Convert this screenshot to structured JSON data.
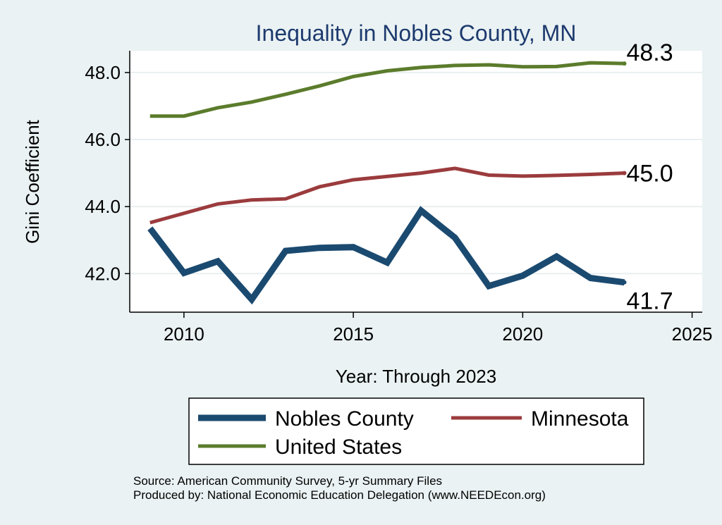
{
  "chart_data": {
    "type": "line",
    "title": "Inequality in Nobles County, MN",
    "xlabel": "Year: Through 2023",
    "ylabel": "Gini Coefficient",
    "xlim": [
      2008.4,
      2025.3
    ],
    "ylim": [
      40.85,
      48.65
    ],
    "x_ticks": [
      2010,
      2015,
      2020,
      2025
    ],
    "x_tick_labels": [
      "2010",
      "2015",
      "2020",
      "2025"
    ],
    "y_ticks": [
      42,
      44,
      46,
      48
    ],
    "y_tick_labels": [
      "42.0",
      "44.0",
      "46.0",
      "48.0"
    ],
    "grid": "horizontal",
    "x": [
      2009,
      2010,
      2011,
      2012,
      2013,
      2014,
      2015,
      2016,
      2017,
      2018,
      2019,
      2020,
      2021,
      2022,
      2023
    ],
    "series": [
      {
        "name": "Nobles County",
        "color": "#1b4a70",
        "weight": "thick",
        "values": [
          43.35,
          42.02,
          42.37,
          41.23,
          42.68,
          42.77,
          42.79,
          42.33,
          43.88,
          43.07,
          41.63,
          41.94,
          42.51,
          41.87,
          41.74
        ],
        "end_label": "41.7"
      },
      {
        "name": "Minnesota",
        "color": "#9b3b3d",
        "weight": "medium",
        "values": [
          43.52,
          43.8,
          44.08,
          44.2,
          44.23,
          44.59,
          44.8,
          44.9,
          45.0,
          45.14,
          44.94,
          44.91,
          44.93,
          44.96,
          45.0
        ],
        "end_label": "45.0"
      },
      {
        "name": "United States",
        "color": "#5b7c2c",
        "weight": "medium",
        "values": [
          46.7,
          46.7,
          46.95,
          47.12,
          47.35,
          47.6,
          47.88,
          48.05,
          48.15,
          48.21,
          48.23,
          48.17,
          48.18,
          48.29,
          48.27
        ],
        "end_label": "48.3"
      }
    ],
    "legend": {
      "placement": "bottom",
      "entries": [
        "Nobles County",
        "Minnesota",
        "United States"
      ]
    }
  },
  "footer": {
    "source": "Source: American Community Survey, 5-yr Summary Files",
    "produced_by": "Produced by: National Economic Education Delegation (www.NEEDEcon.org)"
  },
  "colors": {
    "background": "#eaf2f3",
    "plot_background": "#ffffff",
    "grid": "#e9eff0",
    "title": "#1d3a6e"
  }
}
